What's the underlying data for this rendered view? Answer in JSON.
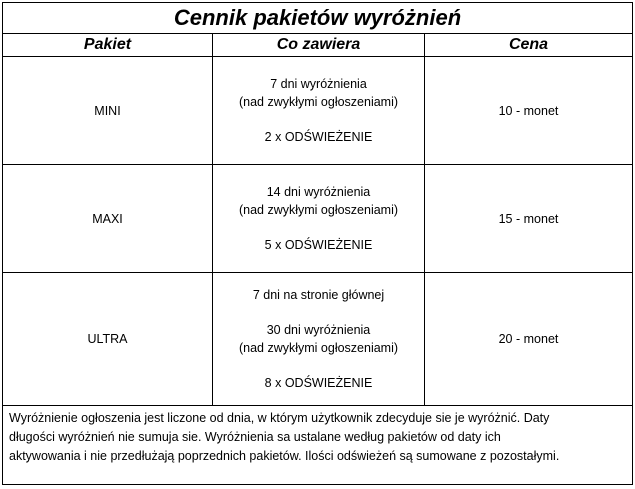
{
  "title": "Cennik pakietów wyróżnień",
  "columns": [
    "Pakiet",
    "Co zawiera",
    "Cena"
  ],
  "rows": [
    {
      "name": "MINI",
      "contents": [
        [
          "7 dni wyróżnienia",
          "(nad zwykłymi ogłoszeniami)"
        ],
        [
          "2 x ODŚWIEŻENIE"
        ]
      ],
      "price": "10 - monet"
    },
    {
      "name": "MAXI",
      "contents": [
        [
          "14 dni wyróżnienia",
          "(nad zwykłymi ogłoszeniami)"
        ],
        [
          "5 x ODŚWIEŻENIE"
        ]
      ],
      "price": "15 - monet"
    },
    {
      "name": "ULTRA",
      "contents": [
        [
          "7 dni na stronie głównej"
        ],
        [
          "30 dni wyróżnienia",
          "(nad zwykłymi ogłoszeniami)"
        ],
        [
          "8 x ODŚWIEŻENIE"
        ]
      ],
      "price": "20 - monet"
    }
  ],
  "note": [
    "Wyróżnienie ogłoszenia jest liczone od dnia, w którym użytkownik zdecyduje sie je wyróżnić. Daty",
    "długości wyróżnień nie sumuja sie. Wyróżnienia sa ustalane według pakietów od daty ich",
    "aktywowania i nie przedłużają poprzednich pakietów. Ilości odświeżeń są sumowane z pozostałymi."
  ]
}
